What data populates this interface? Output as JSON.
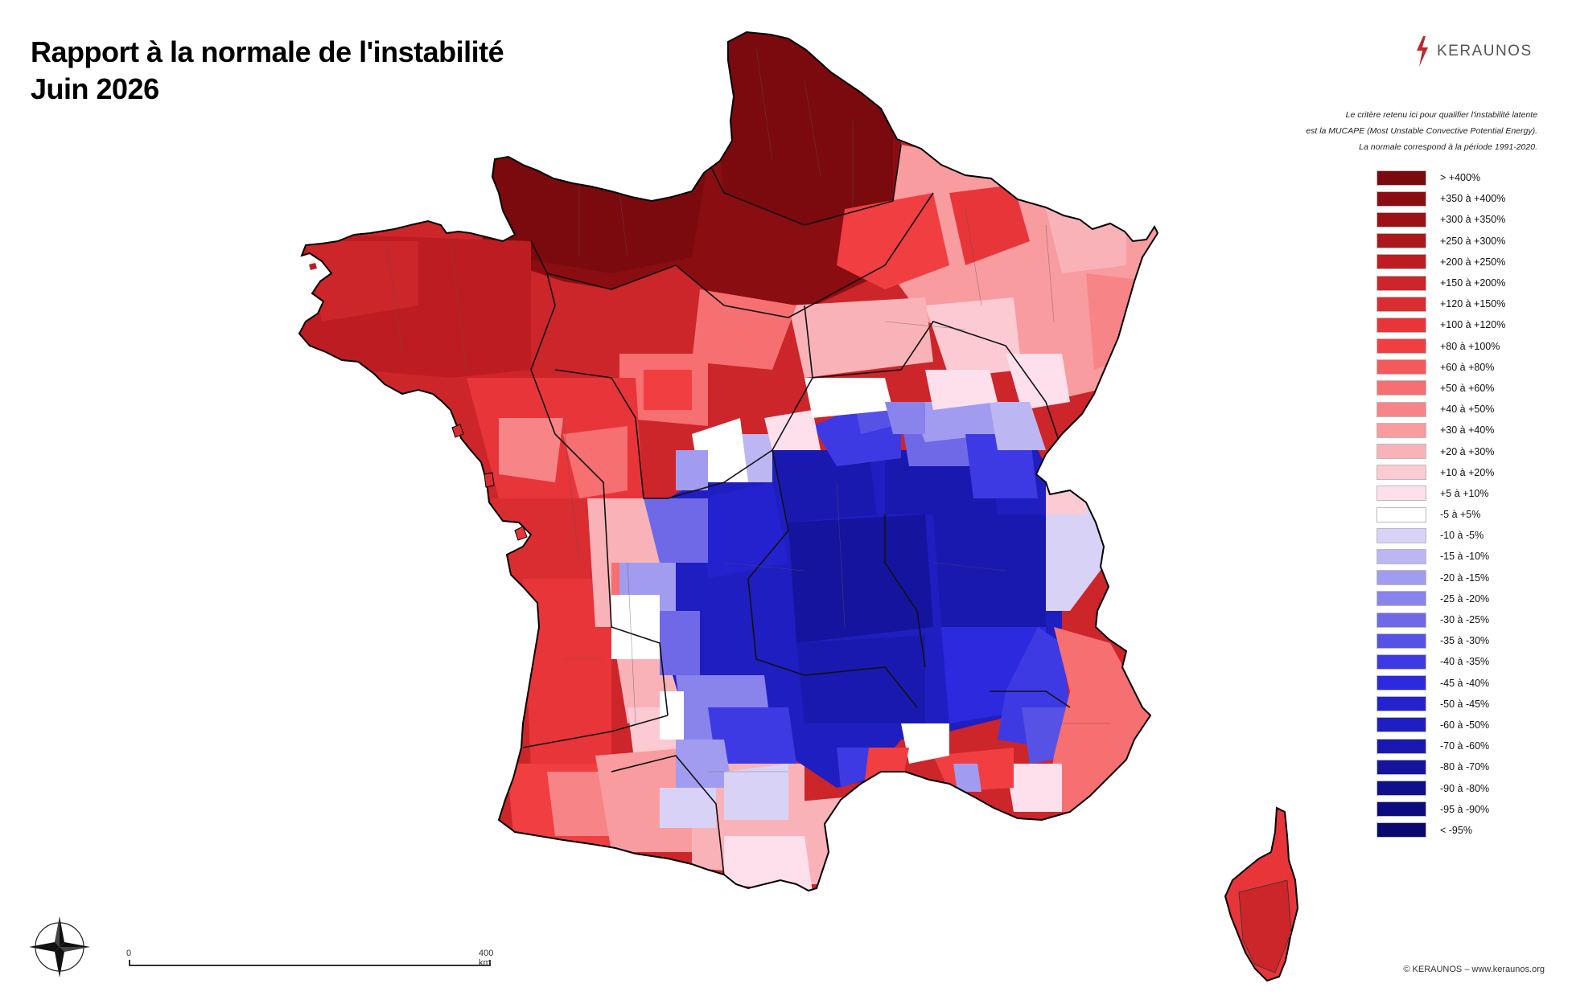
{
  "title": {
    "line1": "Rapport à la normale de l'instabilité",
    "line2": "Juin 2026"
  },
  "brand": {
    "name": "KERAUNOS",
    "color": "#c0272d"
  },
  "note": {
    "line1": "Le critère retenu ici pour qualifier l'instabilité latente",
    "line2": "est la MUCAPE (Most Unstable Convective Potential Energy).",
    "line3": "La normale correspond à la période 1991-2020."
  },
  "legend": [
    {
      "label": "> +400%",
      "color": "#7a0a0e"
    },
    {
      "label": "+350 à +400%",
      "color": "#8a0d12"
    },
    {
      "label": "+300 à +350%",
      "color": "#9b1116"
    },
    {
      "label": "+250 à +300%",
      "color": "#ac171b"
    },
    {
      "label": "+200 à +250%",
      "color": "#bd1d22"
    },
    {
      "label": "+150 à +200%",
      "color": "#cc252a"
    },
    {
      "label": "+120 à +150%",
      "color": "#da2d31"
    },
    {
      "label": "+100 à +120%",
      "color": "#e83539"
    },
    {
      "label": "+80 à +100%",
      "color": "#f03e41"
    },
    {
      "label": "+60 à +80%",
      "color": "#f45a5c"
    },
    {
      "label": "+50 à +60%",
      "color": "#f66f71"
    },
    {
      "label": "+40 à +50%",
      "color": "#f78588"
    },
    {
      "label": "+30 à +40%",
      "color": "#f89ca0"
    },
    {
      "label": "+20 à +30%",
      "color": "#f9b3b8"
    },
    {
      "label": "+10 à +20%",
      "color": "#fbcad2"
    },
    {
      "label": "+5 à +10%",
      "color": "#fde0ec"
    },
    {
      "label": "-5 à +5%",
      "color": "#ffffff"
    },
    {
      "label": "-10 à -5%",
      "color": "#d8d2f6"
    },
    {
      "label": "-15 à -10%",
      "color": "#bcb6f3"
    },
    {
      "label": "-20 à -15%",
      "color": "#a29cf0"
    },
    {
      "label": "-25 à -20%",
      "color": "#8983ec"
    },
    {
      "label": "-30 à -25%",
      "color": "#6f69e8"
    },
    {
      "label": "-35 à -30%",
      "color": "#5652e6"
    },
    {
      "label": "-40 à -35%",
      "color": "#3d3ae4"
    },
    {
      "label": "-45 à -40%",
      "color": "#2c2ade"
    },
    {
      "label": "-50 à -45%",
      "color": "#2422cf"
    },
    {
      "label": "-60 à -50%",
      "color": "#1f1ec0"
    },
    {
      "label": "-70 à -60%",
      "color": "#1a19af"
    },
    {
      "label": "-80 à -70%",
      "color": "#15149e"
    },
    {
      "label": "-90 à -80%",
      "color": "#10108d"
    },
    {
      "label": "-95 à -90%",
      "color": "#0c0c7e"
    },
    {
      "label": "< -95%",
      "color": "#08086e"
    }
  ],
  "scale": {
    "start_label": "0",
    "end_label": "400 km"
  },
  "copyright": "© KERAUNOS – www.keraunos.org",
  "compass_icon": "compass-rose-icon"
}
